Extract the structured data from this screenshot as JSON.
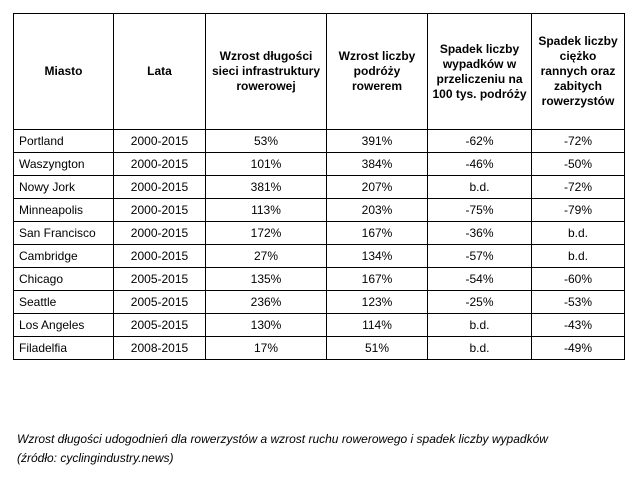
{
  "table": {
    "headers": [
      "Miasto",
      "Lata",
      "Wzrost długości sieci infrastruktury rowerowej",
      "Wzrost liczby podróży rowerem",
      "Spadek liczby wypadków w przeliczeniu na 100 tys. podróży",
      "Spadek liczby ciężko rannych oraz zabitych rowerzystów"
    ],
    "rows": [
      [
        "Portland",
        "2000-2015",
        "53%",
        "391%",
        "-62%",
        "-72%"
      ],
      [
        "Waszyngton",
        "2000-2015",
        "101%",
        "384%",
        "-46%",
        "-50%"
      ],
      [
        "Nowy Jork",
        "2000-2015",
        "381%",
        "207%",
        "b.d.",
        "-72%"
      ],
      [
        "Minneapolis",
        "2000-2015",
        "113%",
        "203%",
        "-75%",
        "-79%"
      ],
      [
        "San Francisco",
        "2000-2015",
        "172%",
        "167%",
        "-36%",
        "b.d."
      ],
      [
        "Cambridge",
        "2000-2015",
        "27%",
        "134%",
        "-57%",
        "b.d."
      ],
      [
        "Chicago",
        "2005-2015",
        "135%",
        "167%",
        "-54%",
        "-60%"
      ],
      [
        "Seattle",
        "2005-2015",
        "236%",
        "123%",
        "-25%",
        "-53%"
      ],
      [
        "Los Angeles",
        "2005-2015",
        "130%",
        "114%",
        "b.d.",
        "-43%"
      ],
      [
        "Filadelfia",
        "2008-2015",
        "17%",
        "51%",
        "b.d.",
        "-49%"
      ]
    ]
  },
  "caption": {
    "line1": "Wzrost długości udogodnień dla rowerzystów a wzrost ruchu rowerowego i spadek liczby wypadków",
    "line2": "(źródło: cyclingindustry.news)"
  }
}
